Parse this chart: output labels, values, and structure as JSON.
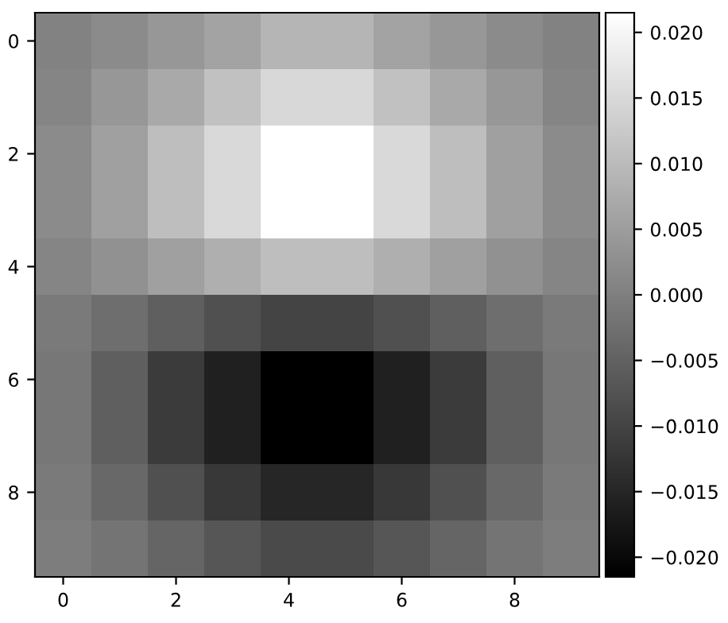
{
  "chart_data": {
    "type": "heatmap",
    "categories": [
      "0",
      null,
      "2",
      null,
      "4",
      null,
      "6",
      null,
      "8",
      null
    ],
    "y_categories": [
      "0",
      null,
      "2",
      null,
      "4",
      null,
      "6",
      null,
      "8",
      null
    ],
    "cells": [
      [
        0.0005,
        0.002,
        0.004,
        0.006,
        0.009,
        0.009,
        0.006,
        0.004,
        0.002,
        0.0005
      ],
      [
        0.001,
        0.004,
        0.007,
        0.011,
        0.0148,
        0.0148,
        0.011,
        0.007,
        0.004,
        0.001
      ],
      [
        0.002,
        0.0055,
        0.0105,
        0.015,
        0.0215,
        0.0215,
        0.015,
        0.0105,
        0.0055,
        0.002
      ],
      [
        0.002,
        0.0055,
        0.0105,
        0.015,
        0.0215,
        0.0215,
        0.015,
        0.0105,
        0.0055,
        0.002
      ],
      [
        0.001,
        0.003,
        0.0055,
        0.008,
        0.0105,
        0.0105,
        0.008,
        0.0055,
        0.003,
        0.001
      ],
      [
        -0.001,
        -0.003,
        -0.0055,
        -0.008,
        -0.01,
        -0.01,
        -0.008,
        -0.0055,
        -0.003,
        -0.001
      ],
      [
        -0.0015,
        -0.0055,
        -0.0115,
        -0.016,
        -0.0215,
        -0.0215,
        -0.016,
        -0.0115,
        -0.0055,
        -0.0015
      ],
      [
        -0.0015,
        -0.0055,
        -0.0115,
        -0.016,
        -0.0215,
        -0.0215,
        -0.016,
        -0.0115,
        -0.0055,
        -0.0015
      ],
      [
        -0.001,
        -0.004,
        -0.008,
        -0.012,
        -0.015,
        -0.015,
        -0.012,
        -0.008,
        -0.004,
        -0.001
      ],
      [
        -0.0005,
        -0.002,
        -0.0045,
        -0.007,
        -0.009,
        -0.009,
        -0.007,
        -0.0045,
        -0.002,
        -0.0005
      ]
    ],
    "clim": [
      -0.0215,
      0.0215
    ],
    "cticks": [
      {
        "value": -0.02,
        "label": "−0.020"
      },
      {
        "value": -0.015,
        "label": "−0.015"
      },
      {
        "value": -0.01,
        "label": "−0.010"
      },
      {
        "value": -0.005,
        "label": "−0.005"
      },
      {
        "value": 0,
        "label": "0.000"
      },
      {
        "value": 0.005,
        "label": "0.005"
      },
      {
        "value": 0.01,
        "label": "0.010"
      },
      {
        "value": 0.015,
        "label": "0.015"
      },
      {
        "value": 0.02,
        "label": "0.020"
      }
    ]
  }
}
